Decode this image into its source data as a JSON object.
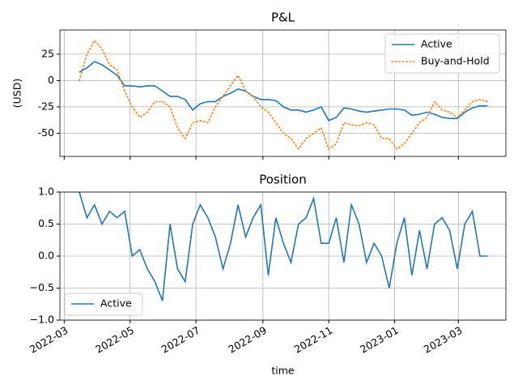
{
  "chart_data": [
    {
      "type": "line",
      "title": "P&L",
      "ylabel": "(USD)",
      "x": [
        "2022-03-15",
        "2022-03-22",
        "2022-03-29",
        "2022-04-05",
        "2022-04-12",
        "2022-04-19",
        "2022-04-26",
        "2022-05-03",
        "2022-05-10",
        "2022-05-17",
        "2022-05-24",
        "2022-05-31",
        "2022-06-07",
        "2022-06-14",
        "2022-06-21",
        "2022-06-28",
        "2022-07-05",
        "2022-07-12",
        "2022-07-19",
        "2022-07-26",
        "2022-08-02",
        "2022-08-09",
        "2022-08-16",
        "2022-08-23",
        "2022-08-30",
        "2022-09-06",
        "2022-09-13",
        "2022-09-20",
        "2022-09-27",
        "2022-10-04",
        "2022-10-11",
        "2022-10-18",
        "2022-10-25",
        "2022-11-01",
        "2022-11-08",
        "2022-11-15",
        "2022-11-22",
        "2022-11-29",
        "2022-12-06",
        "2022-12-13",
        "2022-12-20",
        "2022-12-27",
        "2023-01-03",
        "2023-01-10",
        "2023-01-17",
        "2023-01-24",
        "2023-01-31",
        "2023-02-07",
        "2023-02-14",
        "2023-02-21",
        "2023-02-28",
        "2023-03-07",
        "2023-03-14",
        "2023-03-21",
        "2023-03-28"
      ],
      "series": [
        {
          "name": "Active",
          "color": "#1f77b4",
          "linestyle": "solid",
          "values": [
            8,
            12,
            18,
            15,
            10,
            5,
            -5,
            -5,
            -6,
            -5,
            -5,
            -10,
            -15,
            -15,
            -18,
            -28,
            -22,
            -20,
            -20,
            -15,
            -12,
            -8,
            -10,
            -15,
            -18,
            -18,
            -19,
            -25,
            -28,
            -28,
            -30,
            -28,
            -25,
            -38,
            -35,
            -26,
            -27,
            -29,
            -30,
            -29,
            -28,
            -27,
            -27,
            -28,
            -33,
            -32,
            -30,
            -32,
            -35,
            -36,
            -36,
            -30,
            -26,
            -24,
            -24
          ]
        },
        {
          "name": "Buy-and-Hold",
          "color": "#ff7f0e",
          "linestyle": "dotted",
          "values": [
            0,
            25,
            38,
            30,
            15,
            10,
            -10,
            -25,
            -35,
            -30,
            -20,
            -20,
            -25,
            -45,
            -55,
            -40,
            -38,
            -40,
            -25,
            -15,
            -5,
            5,
            -10,
            -15,
            -25,
            -30,
            -40,
            -50,
            -55,
            -65,
            -55,
            -50,
            -45,
            -65,
            -60,
            -40,
            -42,
            -43,
            -40,
            -42,
            -55,
            -55,
            -65,
            -60,
            -50,
            -40,
            -35,
            -20,
            -28,
            -30,
            -35,
            -28,
            -20,
            -18,
            -20
          ]
        }
      ],
      "xlim": [
        "2022-02-25",
        "2023-04-14"
      ],
      "ylim": [
        -72,
        48
      ],
      "yticks": [
        -50,
        -25,
        0,
        25
      ],
      "grid": true,
      "legend": "upper right"
    },
    {
      "type": "line",
      "title": "Position",
      "xlabel": "time",
      "x": [
        "2022-03-15",
        "2022-03-22",
        "2022-03-29",
        "2022-04-05",
        "2022-04-12",
        "2022-04-19",
        "2022-04-26",
        "2022-05-03",
        "2022-05-10",
        "2022-05-17",
        "2022-05-24",
        "2022-05-31",
        "2022-06-07",
        "2022-06-14",
        "2022-06-21",
        "2022-06-28",
        "2022-07-05",
        "2022-07-12",
        "2022-07-19",
        "2022-07-26",
        "2022-08-02",
        "2022-08-09",
        "2022-08-16",
        "2022-08-23",
        "2022-08-30",
        "2022-09-06",
        "2022-09-13",
        "2022-09-20",
        "2022-09-27",
        "2022-10-04",
        "2022-10-11",
        "2022-10-18",
        "2022-10-25",
        "2022-11-01",
        "2022-11-08",
        "2022-11-15",
        "2022-11-22",
        "2022-11-29",
        "2022-12-06",
        "2022-12-13",
        "2022-12-20",
        "2022-12-27",
        "2023-01-03",
        "2023-01-10",
        "2023-01-17",
        "2023-01-24",
        "2023-01-31",
        "2023-02-07",
        "2023-02-14",
        "2023-02-21",
        "2023-02-28",
        "2023-03-07",
        "2023-03-14",
        "2023-03-21",
        "2023-03-28"
      ],
      "series": [
        {
          "name": "Active",
          "color": "#1f77b4",
          "linestyle": "solid",
          "values": [
            1.0,
            0.6,
            0.8,
            0.5,
            0.7,
            0.6,
            0.7,
            0.0,
            0.1,
            -0.2,
            -0.4,
            -0.7,
            0.5,
            -0.2,
            -0.4,
            0.5,
            0.8,
            0.6,
            0.3,
            -0.2,
            0.2,
            0.8,
            0.3,
            0.6,
            0.8,
            -0.3,
            0.6,
            0.2,
            -0.1,
            0.5,
            0.6,
            0.9,
            0.2,
            0.2,
            0.6,
            -0.1,
            0.8,
            0.5,
            -0.1,
            0.2,
            0.0,
            -0.5,
            0.2,
            0.6,
            -0.3,
            0.4,
            -0.2,
            0.5,
            0.6,
            0.4,
            -0.2,
            0.5,
            0.7,
            0.0,
            0.0
          ]
        }
      ],
      "xlim": [
        "2022-02-25",
        "2023-04-14"
      ],
      "xticks": [
        {
          "value": "2022-03-01",
          "label": "2022-03"
        },
        {
          "value": "2022-05-01",
          "label": "2022-05"
        },
        {
          "value": "2022-07-01",
          "label": "2022-07"
        },
        {
          "value": "2022-09-01",
          "label": "2022-09"
        },
        {
          "value": "2022-11-01",
          "label": "2022-11"
        },
        {
          "value": "2023-01-01",
          "label": "2023-01"
        },
        {
          "value": "2023-03-01",
          "label": "2023-03"
        }
      ],
      "ylim": [
        -1,
        1
      ],
      "yticks": [
        {
          "value": -1,
          "label": "−1.0"
        },
        {
          "value": -0.5,
          "label": "−0.5"
        },
        {
          "value": 0,
          "label": "0.0"
        },
        {
          "value": 0.5,
          "label": "0.5"
        },
        {
          "value": 1,
          "label": "1.0"
        }
      ],
      "grid": true,
      "legend": "lower left"
    }
  ]
}
